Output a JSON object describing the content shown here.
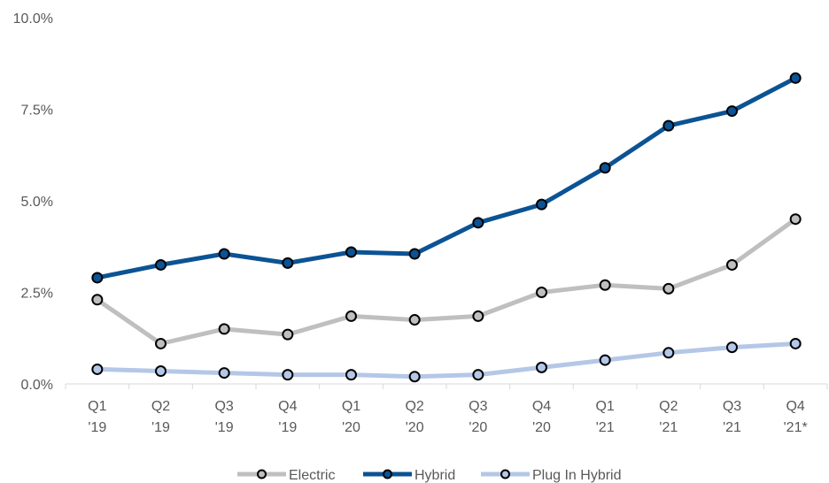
{
  "chart_data": {
    "type": "line",
    "title": "",
    "xlabel": "",
    "ylabel": "",
    "categories": [
      [
        "Q1",
        "'19"
      ],
      [
        "Q2",
        "'19"
      ],
      [
        "Q3",
        "'19"
      ],
      [
        "Q4",
        "'19"
      ],
      [
        "Q1",
        "'20"
      ],
      [
        "Q2",
        "'20"
      ],
      [
        "Q3",
        "'20"
      ],
      [
        "Q4",
        "'20"
      ],
      [
        "Q1",
        "'21"
      ],
      [
        "Q2",
        "'21"
      ],
      [
        "Q3",
        "'21"
      ],
      [
        "Q4",
        "'21*"
      ]
    ],
    "ylim": [
      0,
      10
    ],
    "yticks": [
      "0.0%",
      "2.5%",
      "5.0%",
      "7.5%",
      "10.0%"
    ],
    "grid": false,
    "legend_position": "bottom",
    "series": [
      {
        "name": "Electric",
        "color": "#bfbfbf",
        "values": [
          2.3,
          1.1,
          1.5,
          1.35,
          1.85,
          1.75,
          1.85,
          2.5,
          2.7,
          2.6,
          3.25,
          4.5
        ]
      },
      {
        "name": "Hybrid",
        "color": "#0b5394",
        "values": [
          2.9,
          3.25,
          3.55,
          3.3,
          3.6,
          3.55,
          4.4,
          4.9,
          5.9,
          7.05,
          7.45,
          8.35
        ]
      },
      {
        "name": "Plug In Hybrid",
        "color": "#b4c7e7",
        "values": [
          0.4,
          0.35,
          0.3,
          0.25,
          0.25,
          0.2,
          0.25,
          0.45,
          0.65,
          0.85,
          1.0,
          1.1
        ]
      }
    ]
  }
}
